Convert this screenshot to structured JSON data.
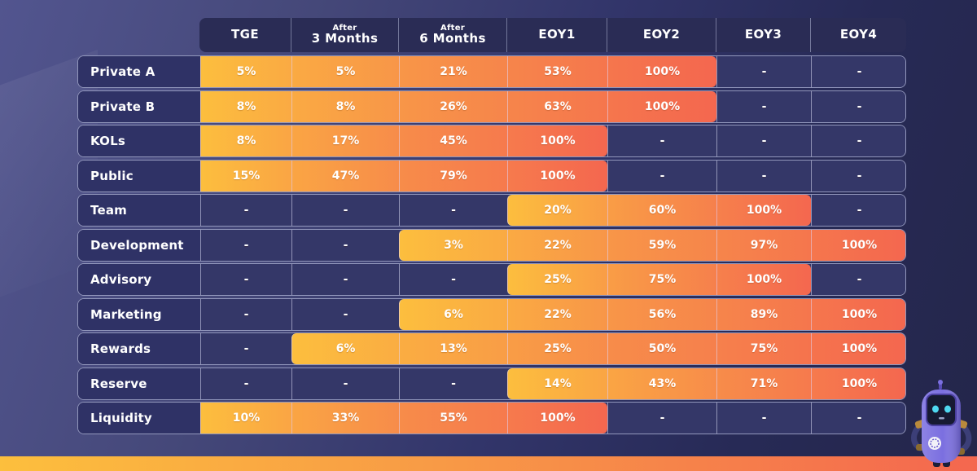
{
  "colors": {
    "fill_gradient_start": "#FCBE3E",
    "fill_gradient_mid": "#F78C4A",
    "fill_gradient_end": "#F4674F",
    "empty_cell": "#343768",
    "label_cell": "#2F3266",
    "header_cell": "#2A2C55",
    "background_left": "#52558F",
    "background_right": "#24264A",
    "text": "#FFFFFF"
  },
  "icons": {
    "mascot": "robot-mascot-icon"
  },
  "chart_data": {
    "type": "table",
    "columns": [
      {
        "prefix": "",
        "label": "TGE"
      },
      {
        "prefix": "After",
        "label": "3 Months"
      },
      {
        "prefix": "After",
        "label": "6 Months"
      },
      {
        "prefix": "",
        "label": "EOY1"
      },
      {
        "prefix": "",
        "label": "EOY2"
      },
      {
        "prefix": "",
        "label": "EOY3"
      },
      {
        "prefix": "",
        "label": "EOY4"
      }
    ],
    "empty_marker": "-",
    "rows": [
      {
        "label": "Private A",
        "values": [
          "5%",
          "5%",
          "21%",
          "53%",
          "100%",
          "-",
          "-"
        ]
      },
      {
        "label": "Private B",
        "values": [
          "8%",
          "8%",
          "26%",
          "63%",
          "100%",
          "-",
          "-"
        ]
      },
      {
        "label": "KOLs",
        "values": [
          "8%",
          "17%",
          "45%",
          "100%",
          "-",
          "-",
          "-"
        ]
      },
      {
        "label": "Public",
        "values": [
          "15%",
          "47%",
          "79%",
          "100%",
          "-",
          "-",
          "-"
        ]
      },
      {
        "label": "Team",
        "values": [
          "-",
          "-",
          "-",
          "20%",
          "60%",
          "100%",
          "-"
        ]
      },
      {
        "label": "Development",
        "values": [
          "-",
          "-",
          "3%",
          "22%",
          "59%",
          "97%",
          "100%"
        ]
      },
      {
        "label": "Advisory",
        "values": [
          "-",
          "-",
          "-",
          "25%",
          "75%",
          "100%",
          "-"
        ]
      },
      {
        "label": "Marketing",
        "values": [
          "-",
          "-",
          "6%",
          "22%",
          "56%",
          "89%",
          "100%"
        ]
      },
      {
        "label": "Rewards",
        "values": [
          "-",
          "6%",
          "13%",
          "25%",
          "50%",
          "75%",
          "100%"
        ]
      },
      {
        "label": "Reserve",
        "values": [
          "-",
          "-",
          "-",
          "14%",
          "43%",
          "71%",
          "100%"
        ]
      },
      {
        "label": "Liquidity",
        "values": [
          "10%",
          "33%",
          "55%",
          "100%",
          "-",
          "-",
          "-"
        ]
      }
    ]
  }
}
